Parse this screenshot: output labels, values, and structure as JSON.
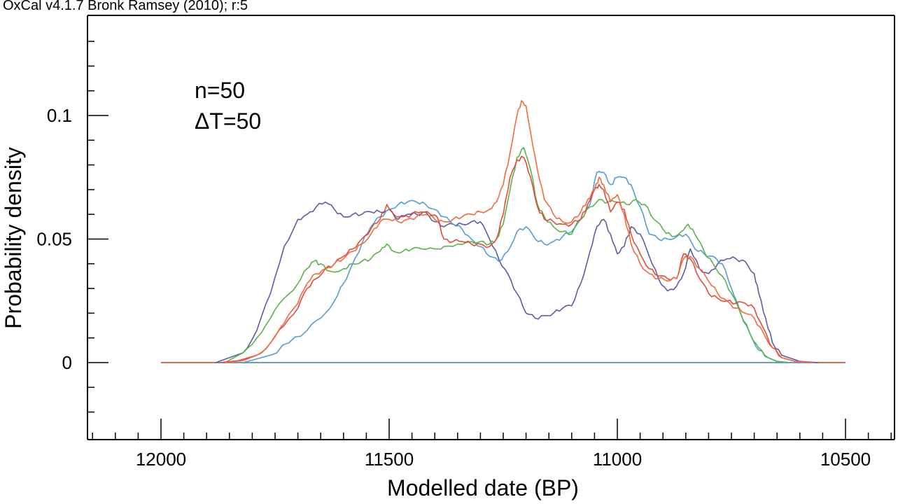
{
  "header": "OxCal v4.1.7 Bronk Ramsey (2010); r:5",
  "annotation": [
    "n=50",
    "ΔT=50"
  ],
  "chart_data": {
    "type": "line",
    "xlabel": "Modelled date (BP)",
    "ylabel": "Probability density",
    "x_reversed": true,
    "xlim": [
      12150,
      10400
    ],
    "ylim": [
      -0.03,
      0.135
    ],
    "x_ticks": [
      12000,
      11500,
      11000,
      10500
    ],
    "x_tick_labels": [
      "12000",
      "11500",
      "11000",
      "10500"
    ],
    "y_ticks": [
      0,
      0.05,
      0.1
    ],
    "y_tick_labels": [
      "0",
      "0.05",
      "0.1"
    ],
    "grid": false,
    "legend": "none",
    "series": [
      {
        "color": "#5b5ba8",
        "x": [
          11880,
          11820,
          11790,
          11760,
          11730,
          11700,
          11680,
          11660,
          11640,
          11620,
          11600,
          11580,
          11560,
          11540,
          11520,
          11500,
          11480,
          11460,
          11440,
          11420,
          11400,
          11380,
          11360,
          11340,
          11320,
          11300,
          11280,
          11260,
          11240,
          11220,
          11200,
          11180,
          11160,
          11140,
          11120,
          11100,
          11080,
          11060,
          11045,
          11030,
          11015,
          11000,
          10985,
          10970,
          10950,
          10930,
          10910,
          10890,
          10870,
          10855,
          10840,
          10820,
          10800,
          10780,
          10760,
          10740,
          10720,
          10700,
          10690,
          10675,
          10660,
          10640,
          10600,
          10560
        ],
        "y": [
          0.0,
          0.004,
          0.013,
          0.028,
          0.047,
          0.058,
          0.06,
          0.063,
          0.065,
          0.062,
          0.059,
          0.06,
          0.06,
          0.061,
          0.061,
          0.062,
          0.058,
          0.06,
          0.06,
          0.061,
          0.057,
          0.055,
          0.056,
          0.056,
          0.057,
          0.057,
          0.05,
          0.042,
          0.036,
          0.028,
          0.02,
          0.018,
          0.019,
          0.02,
          0.022,
          0.023,
          0.032,
          0.045,
          0.055,
          0.058,
          0.052,
          0.044,
          0.047,
          0.055,
          0.052,
          0.043,
          0.034,
          0.029,
          0.031,
          0.036,
          0.046,
          0.038,
          0.036,
          0.04,
          0.042,
          0.042,
          0.041,
          0.036,
          0.028,
          0.018,
          0.008,
          0.003,
          0.0005,
          0.0
        ]
      },
      {
        "color": "#4f9fd4",
        "x": [
          11820,
          11760,
          11720,
          11680,
          11650,
          11620,
          11600,
          11580,
          11560,
          11540,
          11520,
          11500,
          11480,
          11460,
          11440,
          11420,
          11400,
          11380,
          11360,
          11340,
          11320,
          11300,
          11280,
          11260,
          11240,
          11220,
          11200,
          11180,
          11160,
          11140,
          11120,
          11100,
          11080,
          11060,
          11045,
          11030,
          11015,
          11000,
          10985,
          10970,
          10950,
          10930,
          10910,
          10890,
          10870,
          10850,
          10830,
          10810,
          10790,
          10770,
          10750,
          10730,
          10710,
          10690,
          10670,
          10650,
          10620,
          10580
        ],
        "y": [
          0.0,
          0.003,
          0.008,
          0.013,
          0.018,
          0.025,
          0.032,
          0.04,
          0.048,
          0.055,
          0.059,
          0.062,
          0.064,
          0.065,
          0.065,
          0.064,
          0.062,
          0.059,
          0.056,
          0.054,
          0.05,
          0.047,
          0.043,
          0.041,
          0.045,
          0.053,
          0.055,
          0.05,
          0.048,
          0.049,
          0.051,
          0.053,
          0.058,
          0.064,
          0.077,
          0.077,
          0.072,
          0.075,
          0.075,
          0.072,
          0.063,
          0.052,
          0.05,
          0.05,
          0.051,
          0.052,
          0.046,
          0.044,
          0.043,
          0.04,
          0.03,
          0.02,
          0.012,
          0.005,
          0.002,
          0.0005,
          0.0,
          0.0
        ]
      },
      {
        "color": "#5ab34a",
        "x": [
          11860,
          11820,
          11790,
          11760,
          11730,
          11700,
          11680,
          11665,
          11650,
          11630,
          11600,
          11580,
          11560,
          11540,
          11520,
          11505,
          11490,
          11470,
          11450,
          11430,
          11400,
          11380,
          11350,
          11320,
          11300,
          11280,
          11265,
          11250,
          11235,
          11220,
          11205,
          11190,
          11175,
          11160,
          11140,
          11120,
          11100,
          11080,
          11060,
          11040,
          11020,
          11000,
          10980,
          10960,
          10940,
          10920,
          10900,
          10880,
          10860,
          10845,
          10830,
          10810,
          10790,
          10770,
          10750,
          10730,
          10710,
          10690,
          10670,
          10650,
          10630
        ],
        "y": [
          0.0,
          0.004,
          0.01,
          0.018,
          0.026,
          0.032,
          0.038,
          0.041,
          0.04,
          0.037,
          0.038,
          0.04,
          0.041,
          0.042,
          0.045,
          0.048,
          0.045,
          0.045,
          0.046,
          0.046,
          0.046,
          0.047,
          0.048,
          0.049,
          0.049,
          0.048,
          0.05,
          0.056,
          0.07,
          0.083,
          0.087,
          0.078,
          0.064,
          0.059,
          0.055,
          0.053,
          0.052,
          0.058,
          0.063,
          0.066,
          0.065,
          0.065,
          0.064,
          0.066,
          0.064,
          0.058,
          0.054,
          0.051,
          0.053,
          0.056,
          0.052,
          0.045,
          0.04,
          0.035,
          0.028,
          0.02,
          0.012,
          0.006,
          0.002,
          0.0005,
          0.0
        ]
      },
      {
        "color": "#e34a38",
        "x": [
          11870,
          11830,
          11790,
          11760,
          11730,
          11700,
          11680,
          11660,
          11640,
          11620,
          11600,
          11580,
          11560,
          11540,
          11520,
          11505,
          11490,
          11470,
          11450,
          11430,
          11410,
          11395,
          11380,
          11360,
          11340,
          11320,
          11300,
          11280,
          11265,
          11250,
          11235,
          11220,
          11205,
          11190,
          11175,
          11160,
          11140,
          11120,
          11100,
          11080,
          11065,
          11050,
          11040,
          11030,
          11015,
          11000,
          10985,
          10970,
          10950,
          10930,
          10910,
          10890,
          10870,
          10855,
          10840,
          10820,
          10800,
          10780,
          10760,
          10740,
          10720,
          10700,
          10680,
          10660,
          10640,
          10610,
          10570
        ],
        "y": [
          0.0,
          0.0008,
          0.003,
          0.008,
          0.015,
          0.022,
          0.03,
          0.034,
          0.038,
          0.04,
          0.043,
          0.046,
          0.05,
          0.054,
          0.058,
          0.064,
          0.06,
          0.059,
          0.06,
          0.061,
          0.06,
          0.059,
          0.05,
          0.049,
          0.049,
          0.048,
          0.048,
          0.047,
          0.05,
          0.06,
          0.075,
          0.082,
          0.083,
          0.075,
          0.063,
          0.058,
          0.057,
          0.056,
          0.056,
          0.058,
          0.064,
          0.07,
          0.072,
          0.07,
          0.061,
          0.065,
          0.062,
          0.052,
          0.044,
          0.038,
          0.035,
          0.034,
          0.034,
          0.044,
          0.042,
          0.034,
          0.028,
          0.026,
          0.025,
          0.024,
          0.024,
          0.022,
          0.014,
          0.006,
          0.002,
          0.0005,
          0.0
        ]
      },
      {
        "color": "#f26a3c",
        "x": [
          11860,
          11820,
          11790,
          11760,
          11730,
          11700,
          11680,
          11660,
          11640,
          11620,
          11600,
          11580,
          11560,
          11540,
          11520,
          11500,
          11480,
          11460,
          11440,
          11420,
          11400,
          11380,
          11360,
          11340,
          11320,
          11300,
          11280,
          11265,
          11250,
          11235,
          11220,
          11210,
          11200,
          11190,
          11175,
          11160,
          11140,
          11120,
          11100,
          11080,
          11065,
          11050,
          11040,
          11030,
          11015,
          11000,
          10985,
          10970,
          10950,
          10930,
          10910,
          10890,
          10870,
          10855,
          10840,
          10820,
          10800,
          10780,
          10760,
          10740,
          10720,
          10700,
          10680,
          10660,
          10640,
          10610,
          10570
        ],
        "y": [
          0.0,
          0.0008,
          0.003,
          0.008,
          0.016,
          0.024,
          0.032,
          0.036,
          0.038,
          0.04,
          0.042,
          0.045,
          0.048,
          0.052,
          0.057,
          0.058,
          0.057,
          0.058,
          0.059,
          0.06,
          0.058,
          0.057,
          0.058,
          0.059,
          0.06,
          0.061,
          0.062,
          0.065,
          0.072,
          0.085,
          0.1,
          0.106,
          0.104,
          0.093,
          0.078,
          0.066,
          0.06,
          0.057,
          0.057,
          0.061,
          0.066,
          0.07,
          0.075,
          0.072,
          0.065,
          0.068,
          0.06,
          0.048,
          0.04,
          0.036,
          0.034,
          0.033,
          0.034,
          0.042,
          0.043,
          0.038,
          0.033,
          0.028,
          0.025,
          0.022,
          0.02,
          0.018,
          0.012,
          0.006,
          0.002,
          0.0005,
          0.0
        ]
      }
    ],
    "baselines": [
      {
        "color": "#5ab34a",
        "x": [
          12000,
          10500
        ]
      },
      {
        "color": "#e34a38",
        "x": [
          12000,
          10500
        ]
      },
      {
        "color": "#4f9fd4",
        "x": [
          11880,
          10560
        ]
      }
    ]
  }
}
